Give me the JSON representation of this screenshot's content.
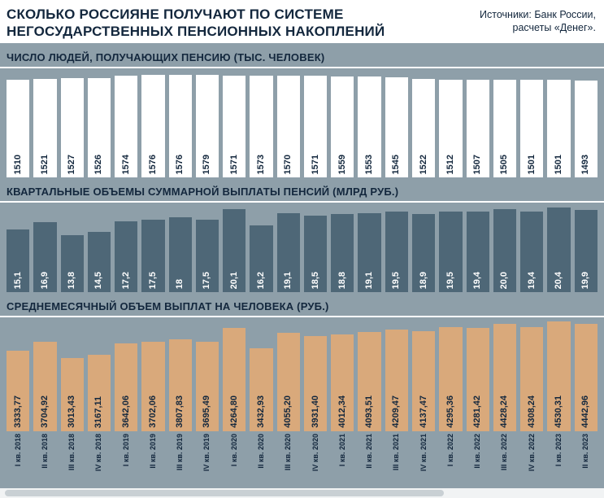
{
  "header": {
    "title_line1": "СКОЛЬКО РОССИЯНЕ ПОЛУЧАЮТ ПО СИСТЕМЕ",
    "title_line2": "НЕГОСУДАРСТВЕННЫХ ПЕНСИОННЫХ НАКОПЛЕНИЙ",
    "source_line1": "Источники: Банк России,",
    "source_line2": "расчеты «Денег»."
  },
  "colors": {
    "background": "#8E9FA9",
    "bar_people": "#FFFFFF",
    "bar_volume": "#4E6777",
    "bar_average": "#D9A97B",
    "text_dark": "#13273D",
    "text_on_dark": "#FFFFFF"
  },
  "categories": [
    "I кв. 2018",
    "II кв. 2018",
    "III кв. 2018",
    "IV кв. 2018",
    "I кв. 2019",
    "II кв. 2019",
    "III кв. 2019",
    "IV кв. 2019",
    "I кв. 2020",
    "II кв. 2020",
    "III кв. 2020",
    "IV кв. 2020",
    "I кв. 2021",
    "II кв. 2021",
    "III кв. 2021",
    "IV кв. 2021",
    "I кв. 2022",
    "II кв. 2022",
    "III кв. 2022",
    "IV кв. 2022",
    "I кв. 2023",
    "II кв. 2023"
  ],
  "chart_data": [
    {
      "type": "bar",
      "title": "ЧИСЛО ЛЮДЕЙ, ПОЛУЧАЮЩИХ ПЕНСИЮ (ТЫС. ЧЕЛОВЕК)",
      "ylim": [
        0,
        1579
      ],
      "values": [
        1510,
        1521,
        1527,
        1526,
        1574,
        1576,
        1576,
        1579,
        1571,
        1573,
        1570,
        1571,
        1559,
        1553,
        1545,
        1522,
        1512,
        1507,
        1505,
        1501,
        1501,
        1493
      ],
      "value_labels": [
        "1510",
        "1521",
        "1527",
        "1526",
        "1574",
        "1576",
        "1576",
        "1579",
        "1571",
        "1573",
        "1570",
        "1571",
        "1559",
        "1553",
        "1545",
        "1522",
        "1512",
        "1507",
        "1505",
        "1501",
        "1501",
        "1493"
      ]
    },
    {
      "type": "bar",
      "title": "КВАРТАЛЬНЫЕ ОБЪЕМЫ СУММАРНОЙ ВЫПЛАТЫ ПЕНСИЙ (МЛРД РУБ.)",
      "ylim": [
        0,
        20.4
      ],
      "values": [
        15.1,
        16.9,
        13.8,
        14.5,
        17.2,
        17.5,
        18,
        17.5,
        20.1,
        16.2,
        19.1,
        18.5,
        18.8,
        19.1,
        19.5,
        18.9,
        19.5,
        19.4,
        20.0,
        19.4,
        20.4,
        19.9
      ],
      "value_labels": [
        "15,1",
        "16,9",
        "13,8",
        "14,5",
        "17,2",
        "17,5",
        "18",
        "17,5",
        "20,1",
        "16,2",
        "19,1",
        "18,5",
        "18,8",
        "19,1",
        "19,5",
        "18,9",
        "19,5",
        "19,4",
        "20,0",
        "19,4",
        "20,4",
        "19,9"
      ]
    },
    {
      "type": "bar",
      "title": "СРЕДНЕМЕСЯЧНЫЙ ОБЪЕМ ВЫПЛАТ НА ЧЕЛОВЕКА (РУБ.)",
      "ylim": [
        0,
        4530.31
      ],
      "values": [
        3333.77,
        3704.92,
        3013.43,
        3167.11,
        3642.06,
        3702.06,
        3807.83,
        3695.49,
        4264.8,
        3432.93,
        4055.2,
        3931.4,
        4012.34,
        4093.51,
        4209.47,
        4137.47,
        4295.36,
        4281.42,
        4428.24,
        4308.24,
        4530.31,
        4442.96
      ],
      "value_labels": [
        "3333,77",
        "3704,92",
        "3013,43",
        "3167,11",
        "3642,06",
        "3702,06",
        "3807,83",
        "3695,49",
        "4264,80",
        "3432,93",
        "4055,20",
        "3931,40",
        "4012,34",
        "4093,51",
        "4209,47",
        "4137,47",
        "4295,36",
        "4281,42",
        "4428,24",
        "4308,24",
        "4530,31",
        "4442,96"
      ]
    }
  ]
}
